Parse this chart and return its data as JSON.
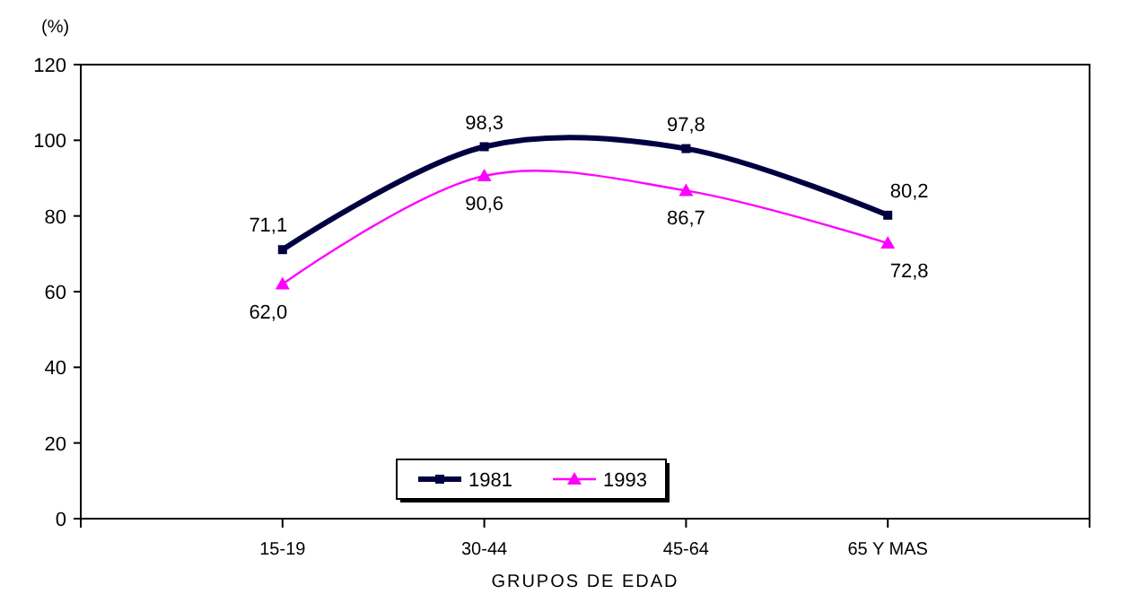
{
  "chart_data": {
    "type": "line",
    "ylabel": "(%)",
    "xlabel": "GRUPOS DE EDAD",
    "categories": [
      "15-19",
      "30-44",
      "45-64",
      "65 Y MAS"
    ],
    "series": [
      {
        "name": "1981",
        "color": "#000040",
        "values": [
          71.1,
          98.3,
          97.8,
          80.2
        ],
        "value_labels": [
          "71,1",
          "98,3",
          "97,8",
          "80,2"
        ],
        "marker": "square"
      },
      {
        "name": "1993",
        "color": "#ff00ff",
        "values": [
          62.0,
          90.6,
          86.7,
          72.8
        ],
        "value_labels": [
          "62,0",
          "90,6",
          "86,7",
          "72,8"
        ],
        "marker": "triangle"
      }
    ],
    "ylim": [
      0,
      120
    ],
    "yticks": [
      0,
      20,
      40,
      60,
      80,
      100,
      120
    ],
    "grid": false,
    "legend": "bottom",
    "line_style": "solid"
  }
}
